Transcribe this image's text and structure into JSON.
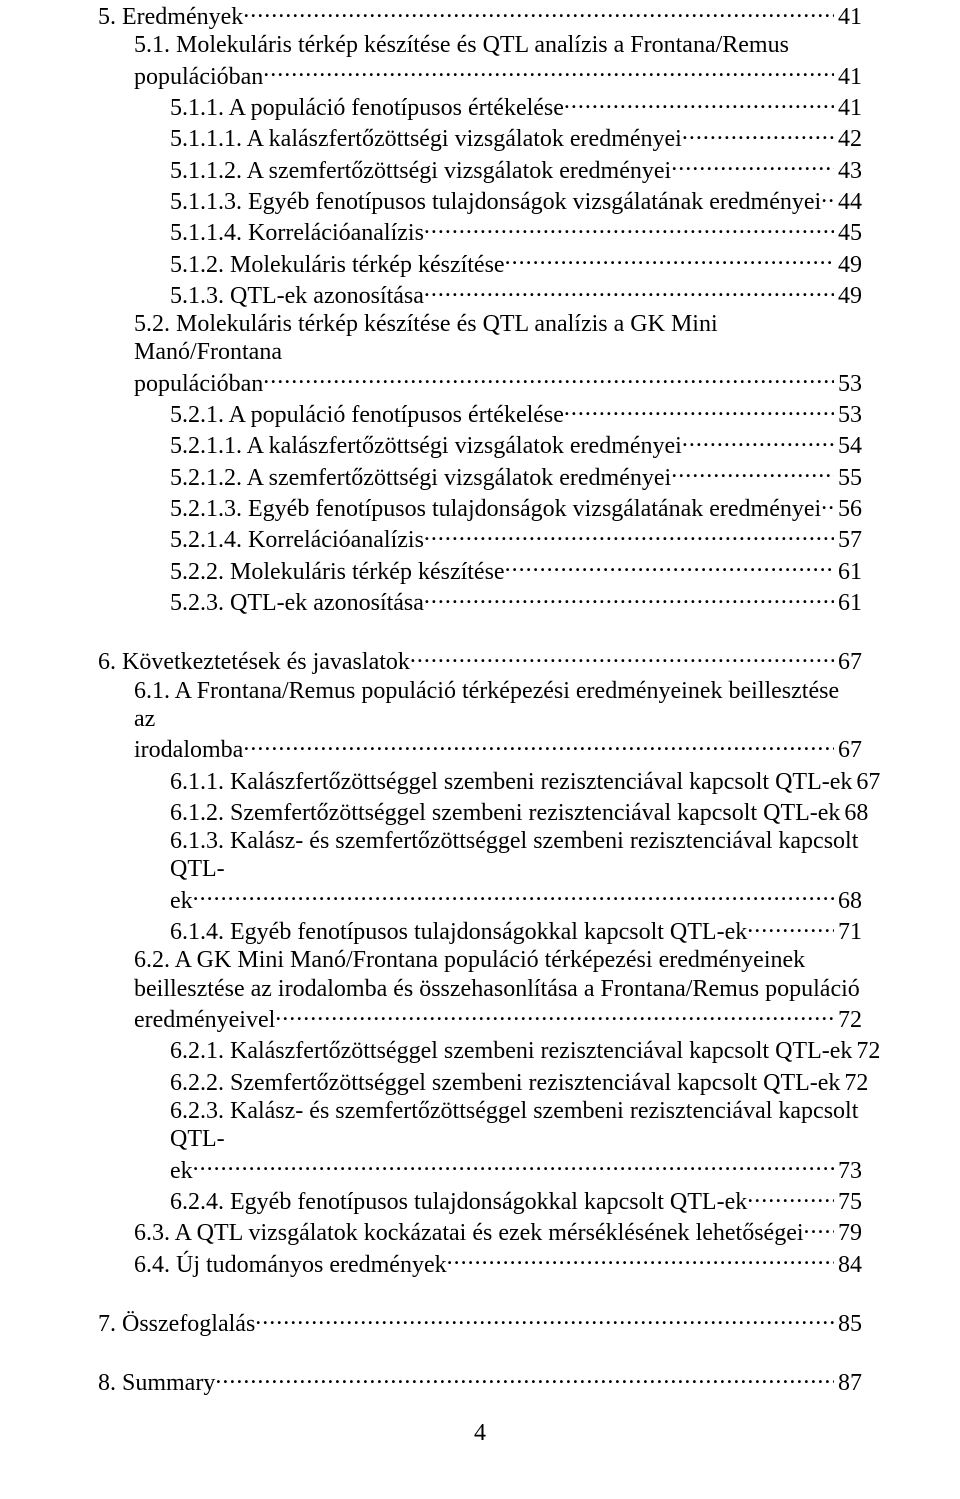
{
  "page_number": "4",
  "font": {
    "family": "Times New Roman",
    "size_pt": 18,
    "color": "#000000",
    "background": "#ffffff"
  },
  "toc": [
    {
      "level": 0,
      "label_lines": [
        "5. Eredmények"
      ],
      "page": "41"
    },
    {
      "level": 1,
      "label_lines": [
        "5.1. Molekuláris térkép készítése és QTL analízis a Frontana/Remus",
        "populációban"
      ],
      "page": "41"
    },
    {
      "level": 2,
      "label_lines": [
        "5.1.1. A populáció fenotípusos értékelése"
      ],
      "page": "41"
    },
    {
      "level": 2,
      "label_lines": [
        "5.1.1.1. A kalászfertőzöttségi vizsgálatok eredményei"
      ],
      "page": "42"
    },
    {
      "level": 2,
      "label_lines": [
        "5.1.1.2. A szemfertőzöttségi vizsgálatok eredményei"
      ],
      "page": "43"
    },
    {
      "level": 2,
      "label_lines": [
        "5.1.1.3. Egyéb fenotípusos tulajdonságok vizsgálatának eredményei"
      ],
      "page": "44"
    },
    {
      "level": 2,
      "label_lines": [
        "5.1.1.4. Korrelációanalízis"
      ],
      "page": "45"
    },
    {
      "level": 2,
      "label_lines": [
        "5.1.2. Molekuláris térkép készítése"
      ],
      "page": "49"
    },
    {
      "level": 2,
      "label_lines": [
        "5.1.3. QTL-ek azonosítása"
      ],
      "page": "49"
    },
    {
      "level": 1,
      "label_lines": [
        "5.2. Molekuláris térkép készítése és QTL analízis a GK Mini Manó/Frontana",
        "populációban"
      ],
      "page": "53"
    },
    {
      "level": 2,
      "label_lines": [
        "5.2.1. A populáció fenotípusos értékelése"
      ],
      "page": "53"
    },
    {
      "level": 2,
      "label_lines": [
        "5.2.1.1. A kalászfertőzöttségi vizsgálatok eredményei"
      ],
      "page": "54"
    },
    {
      "level": 2,
      "label_lines": [
        "5.2.1.2. A szemfertőzöttségi vizsgálatok eredményei"
      ],
      "page": "55"
    },
    {
      "level": 2,
      "label_lines": [
        "5.2.1.3. Egyéb fenotípusos tulajdonságok vizsgálatának eredményei"
      ],
      "page": "56"
    },
    {
      "level": 2,
      "label_lines": [
        "5.2.1.4. Korrelációanalízis"
      ],
      "page": "57"
    },
    {
      "level": 2,
      "label_lines": [
        "5.2.2. Molekuláris térkép készítése"
      ],
      "page": "61"
    },
    {
      "level": 2,
      "label_lines": [
        "5.2.3. QTL-ek azonosítása"
      ],
      "page": "61"
    },
    {
      "spacer": true
    },
    {
      "level": 0,
      "label_lines": [
        "6. Következtetések és javaslatok"
      ],
      "page": "67"
    },
    {
      "level": 1,
      "label_lines": [
        "6.1. A Frontana/Remus populáció térképezési eredményeinek beillesztése az",
        "irodalomba"
      ],
      "page": "67"
    },
    {
      "level": 2,
      "label_lines": [
        "6.1.1. Kalászfertőzöttséggel szembeni rezisztenciával kapcsolt QTL-ek"
      ],
      "page": "67"
    },
    {
      "level": 2,
      "label_lines": [
        "6.1.2. Szemfertőzöttséggel szembeni rezisztenciával kapcsolt QTL-ek"
      ],
      "page": "68"
    },
    {
      "level": 2,
      "label_lines": [
        "6.1.3. Kalász- és szemfertőzöttséggel szembeni rezisztenciával kapcsolt QTL-",
        "ek"
      ],
      "page": "68"
    },
    {
      "level": 2,
      "label_lines": [
        "6.1.4. Egyéb fenotípusos tulajdonságokkal kapcsolt QTL-ek"
      ],
      "page": "71"
    },
    {
      "level": 1,
      "label_lines": [
        "6.2. A GK Mini Manó/Frontana populáció térképezési eredményeinek",
        "beillesztése az irodalomba és összehasonlítása a Frontana/Remus populáció",
        "eredményeivel"
      ],
      "page": "72"
    },
    {
      "level": 2,
      "label_lines": [
        "6.2.1. Kalászfertőzöttséggel szembeni rezisztenciával kapcsolt QTL-ek"
      ],
      "page": "72"
    },
    {
      "level": 2,
      "label_lines": [
        "6.2.2. Szemfertőzöttséggel szembeni rezisztenciával kapcsolt QTL-ek"
      ],
      "page": "72"
    },
    {
      "level": 2,
      "label_lines": [
        "6.2.3. Kalász- és szemfertőzöttséggel szembeni rezisztenciával kapcsolt QTL-",
        "ek"
      ],
      "page": "73"
    },
    {
      "level": 2,
      "label_lines": [
        "6.2.4. Egyéb fenotípusos tulajdonságokkal kapcsolt QTL-ek"
      ],
      "page": "75"
    },
    {
      "level": 1,
      "label_lines": [
        "6.3. A QTL vizsgálatok kockázatai és ezek mérséklésének lehetőségei"
      ],
      "page": "79"
    },
    {
      "level": 1,
      "label_lines": [
        "6.4. Új tudományos eredmények"
      ],
      "page": "84"
    },
    {
      "spacer": true
    },
    {
      "level": 0,
      "label_lines": [
        "7. Összefoglalás"
      ],
      "page": "85"
    },
    {
      "spacer": true
    },
    {
      "level": 0,
      "label_lines": [
        "8. Summary"
      ],
      "page": "87"
    }
  ]
}
